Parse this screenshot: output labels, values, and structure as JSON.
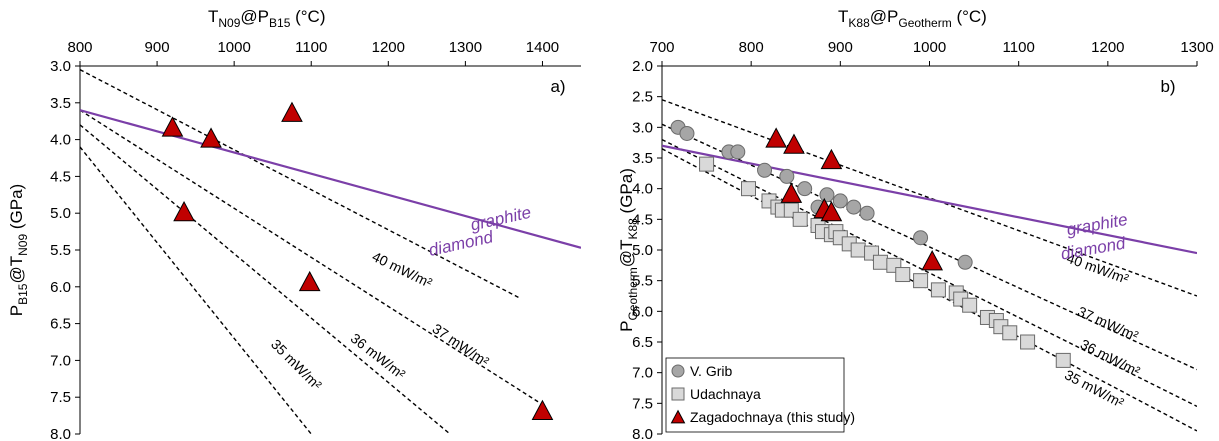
{
  "chart_data": [
    {
      "type": "scatter",
      "panel_label": "a)",
      "xlabel": {
        "base": "T",
        "sub1": "N09",
        "mid": "@P",
        "sub2": "B15",
        "tail": " (°C)"
      },
      "ylabel": {
        "base": "P",
        "sub1": "B15",
        "mid": "@T",
        "sub2": "N09",
        "tail": " (GPa)"
      },
      "xlim": [
        800,
        1450
      ],
      "ylim": [
        8.0,
        3.0
      ],
      "x_axis_position": "top",
      "y_reversed": true,
      "xticks": [
        800,
        900,
        1000,
        1100,
        1200,
        1300,
        1400
      ],
      "yticks": [
        3.0,
        3.5,
        4.0,
        4.5,
        5.0,
        5.5,
        6.0,
        6.5,
        7.0,
        7.5,
        8.0
      ],
      "grid": false,
      "graphite_diamond_line": {
        "x": [
          800,
          1450
        ],
        "y": [
          3.6,
          5.47
        ],
        "color": "#7B3FA8",
        "labels": [
          "graphite",
          "diamond"
        ]
      },
      "geotherms": [
        {
          "label": "40 mW/m²",
          "x": [
            800,
            1370
          ],
          "y": [
            3.05,
            6.15
          ]
        },
        {
          "label": "37 mW/m²",
          "x": [
            800,
            1400
          ],
          "y": [
            3.6,
            7.6
          ]
        },
        {
          "label": "36 mW/m²",
          "x": [
            800,
            1280
          ],
          "y": [
            3.8,
            8.0
          ]
        },
        {
          "label": "35 mW/m²",
          "x": [
            800,
            1100
          ],
          "y": [
            4.1,
            8.0
          ]
        }
      ],
      "series": [
        {
          "marker": "triangle",
          "color": "#C00000",
          "x": [
            920,
            970,
            1075,
            935,
            1098,
            1400
          ],
          "y": [
            3.85,
            4.0,
            3.65,
            5.0,
            5.95,
            7.7
          ]
        }
      ]
    },
    {
      "type": "scatter",
      "panel_label": "b)",
      "xlabel": {
        "base": "T",
        "sub1": "K88",
        "mid": "@P",
        "sub2": "Geotherm",
        "tail": " (°C)"
      },
      "ylabel": {
        "base": "P",
        "sub1": "Geotherm",
        "mid": "@T",
        "sub2": "K88",
        "tail": " (GPa)"
      },
      "xlim": [
        700,
        1300
      ],
      "ylim": [
        8.0,
        2.0
      ],
      "x_axis_position": "top",
      "y_reversed": true,
      "xticks": [
        700,
        800,
        900,
        1000,
        1100,
        1200,
        1300
      ],
      "yticks": [
        2.0,
        2.5,
        3.0,
        3.5,
        4.0,
        4.5,
        5.0,
        5.5,
        6.0,
        6.5,
        7.0,
        7.5,
        8.0
      ],
      "grid": false,
      "graphite_diamond_line": {
        "x": [
          700,
          1300
        ],
        "y": [
          3.3,
          5.05
        ],
        "color": "#7B3FA8",
        "labels": [
          "graphite",
          "diamond"
        ]
      },
      "geotherms": [
        {
          "label": "40 mW/m²",
          "x": [
            700,
            1300
          ],
          "y": [
            2.55,
            5.75
          ]
        },
        {
          "label": "37 mW/m²",
          "x": [
            700,
            1300
          ],
          "y": [
            2.95,
            6.95
          ]
        },
        {
          "label": "36 mW/m²",
          "x": [
            700,
            1300
          ],
          "y": [
            3.2,
            7.55
          ]
        },
        {
          "label": "35 mW/m²",
          "x": [
            700,
            1300
          ],
          "y": [
            3.35,
            7.95
          ]
        }
      ],
      "legend": {
        "placement": "bottom-left",
        "entries": [
          "V. Grib",
          "Udachnaya",
          "Zagadochnaya (this study)"
        ]
      },
      "series": [
        {
          "name": "V. Grib",
          "marker": "circle",
          "color": "#A6A6A6",
          "x": [
            718,
            728,
            775,
            785,
            815,
            840,
            860,
            875,
            885,
            900,
            915,
            930,
            990,
            1040
          ],
          "y": [
            3.0,
            3.1,
            3.4,
            3.4,
            3.7,
            3.8,
            4.0,
            4.3,
            4.1,
            4.2,
            4.3,
            4.4,
            4.8,
            5.2
          ]
        },
        {
          "name": "Udachnaya",
          "marker": "square",
          "color": "#D9D9D9",
          "x": [
            750,
            797,
            820,
            830,
            835,
            845,
            855,
            875,
            880,
            890,
            895,
            900,
            910,
            920,
            935,
            945,
            960,
            970,
            990,
            1010,
            1030,
            1035,
            1045,
            1065,
            1075,
            1080,
            1090,
            1110,
            1150
          ],
          "y": [
            3.6,
            4.0,
            4.2,
            4.3,
            4.35,
            4.35,
            4.5,
            4.6,
            4.7,
            4.75,
            4.7,
            4.8,
            4.9,
            5.0,
            5.05,
            5.2,
            5.25,
            5.4,
            5.5,
            5.65,
            5.7,
            5.8,
            5.9,
            6.1,
            6.15,
            6.25,
            6.35,
            6.5,
            6.8
          ]
        },
        {
          "name": "Zagadochnaya (this study)",
          "marker": "triangle",
          "color": "#C00000",
          "x": [
            828,
            848,
            890,
            845,
            882,
            890,
            1003
          ],
          "y": [
            3.2,
            3.3,
            3.55,
            4.1,
            4.35,
            4.4,
            5.2
          ]
        }
      ]
    }
  ]
}
